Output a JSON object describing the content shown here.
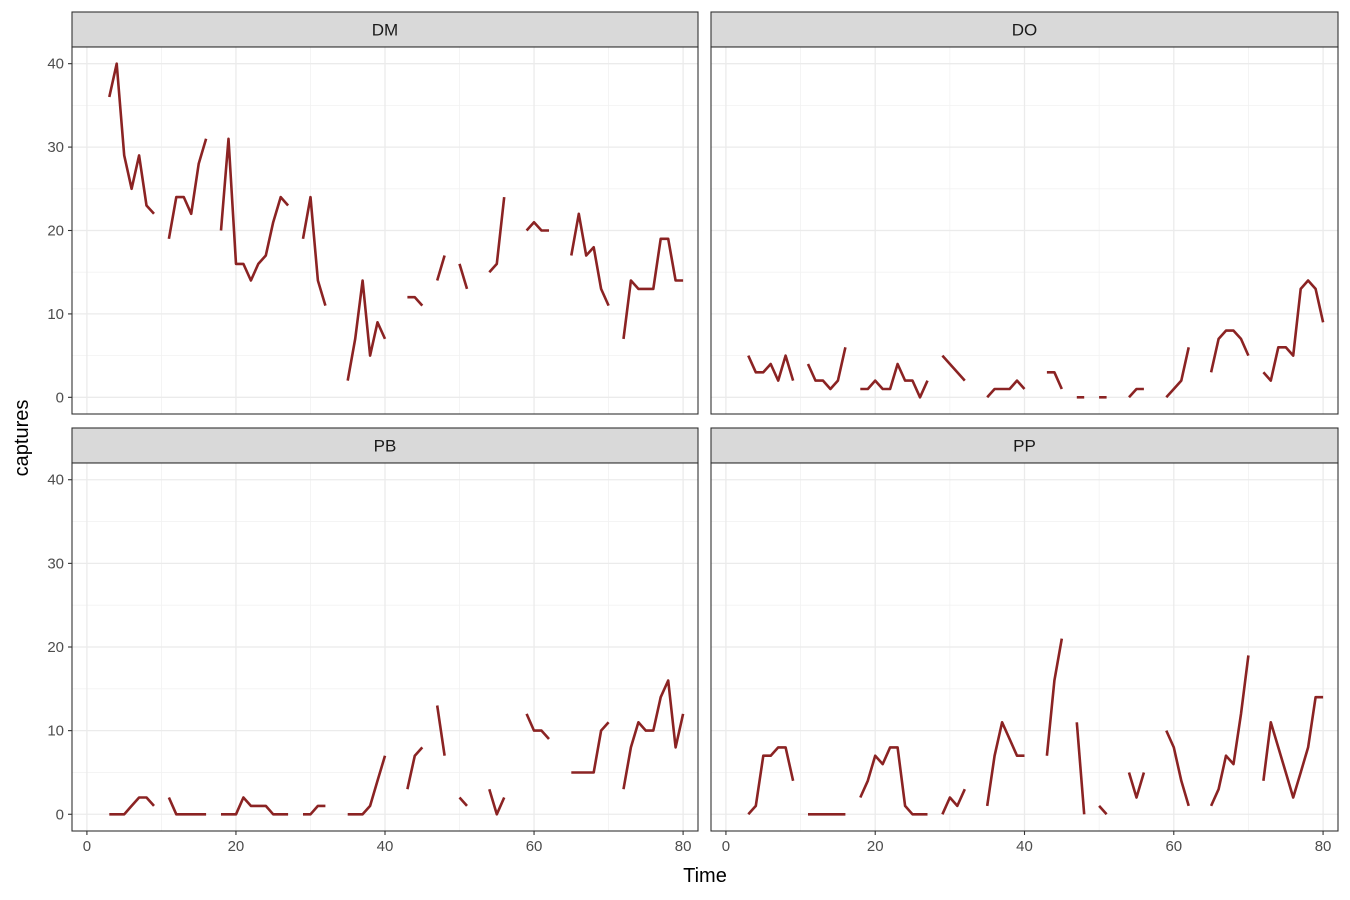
{
  "chart_data": {
    "type": "line",
    "xlabel": "Time",
    "ylabel": "captures",
    "xlim": [
      -2,
      82
    ],
    "ylim": [
      -2,
      42
    ],
    "x_ticks": [
      0,
      20,
      40,
      60,
      80
    ],
    "y_ticks": [
      0,
      10,
      20,
      30,
      40
    ],
    "x_minor": [
      10,
      30,
      50,
      70
    ],
    "y_minor": [
      5,
      15,
      25,
      35
    ],
    "grid": true,
    "line_color": "#8B2323",
    "facet_layout": "2x2",
    "panels": [
      {
        "name": "DM",
        "segments": [
          [
            [
              3,
              36
            ],
            [
              4,
              40
            ],
            [
              5,
              29
            ],
            [
              6,
              25
            ],
            [
              7,
              29
            ],
            [
              8,
              23
            ],
            [
              9,
              22
            ]
          ],
          [
            [
              11,
              19
            ],
            [
              12,
              24
            ],
            [
              13,
              24
            ],
            [
              14,
              22
            ],
            [
              15,
              28
            ],
            [
              16,
              31
            ]
          ],
          [
            [
              18,
              20
            ],
            [
              19,
              31
            ],
            [
              20,
              16
            ],
            [
              21,
              16
            ],
            [
              22,
              14
            ],
            [
              23,
              16
            ],
            [
              24,
              17
            ],
            [
              25,
              21
            ],
            [
              26,
              24
            ],
            [
              27,
              23
            ]
          ],
          [
            [
              29,
              19
            ],
            [
              30,
              24
            ],
            [
              31,
              14
            ],
            [
              32,
              11
            ]
          ],
          [
            [
              35,
              2
            ],
            [
              36,
              7
            ],
            [
              37,
              14
            ],
            [
              38,
              5
            ],
            [
              39,
              9
            ],
            [
              40,
              7
            ]
          ],
          [
            [
              43,
              12
            ],
            [
              44,
              12
            ],
            [
              45,
              11
            ]
          ],
          [
            [
              47,
              14
            ],
            [
              48,
              17
            ]
          ],
          [
            [
              50,
              16
            ],
            [
              51,
              13
            ]
          ],
          [
            [
              54,
              15
            ],
            [
              55,
              16
            ],
            [
              56,
              24
            ]
          ],
          [
            [
              59,
              20
            ],
            [
              60,
              21
            ],
            [
              61,
              20
            ],
            [
              62,
              20
            ]
          ],
          [
            [
              65,
              17
            ],
            [
              66,
              22
            ],
            [
              67,
              17
            ],
            [
              68,
              18
            ],
            [
              69,
              13
            ],
            [
              70,
              11
            ]
          ],
          [
            [
              72,
              7
            ],
            [
              73,
              14
            ],
            [
              74,
              13
            ],
            [
              75,
              13
            ],
            [
              76,
              13
            ],
            [
              77,
              19
            ],
            [
              78,
              19
            ],
            [
              79,
              14
            ],
            [
              80,
              14
            ]
          ]
        ]
      },
      {
        "name": "DO",
        "segments": [
          [
            [
              3,
              5
            ],
            [
              4,
              3
            ],
            [
              5,
              3
            ],
            [
              6,
              4
            ],
            [
              7,
              2
            ],
            [
              8,
              5
            ],
            [
              9,
              2
            ]
          ],
          [
            [
              11,
              4
            ],
            [
              12,
              2
            ],
            [
              13,
              2
            ],
            [
              14,
              1
            ],
            [
              15,
              2
            ],
            [
              16,
              6
            ]
          ],
          [
            [
              18,
              1
            ],
            [
              19,
              1
            ],
            [
              20,
              2
            ],
            [
              21,
              1
            ],
            [
              22,
              1
            ],
            [
              23,
              4
            ],
            [
              24,
              2
            ],
            [
              25,
              2
            ],
            [
              26,
              0
            ],
            [
              27,
              2
            ]
          ],
          [
            [
              29,
              5
            ],
            [
              30,
              4
            ],
            [
              31,
              3
            ],
            [
              32,
              2
            ]
          ],
          [
            [
              35,
              0
            ],
            [
              36,
              1
            ],
            [
              37,
              1
            ],
            [
              38,
              1
            ],
            [
              39,
              2
            ],
            [
              40,
              1
            ]
          ],
          [
            [
              43,
              3
            ],
            [
              44,
              3
            ],
            [
              45,
              1
            ]
          ],
          [
            [
              47,
              0
            ],
            [
              48,
              0
            ]
          ],
          [
            [
              50,
              0
            ],
            [
              51,
              0
            ]
          ],
          [
            [
              54,
              0
            ],
            [
              55,
              1
            ],
            [
              56,
              1
            ]
          ],
          [
            [
              59,
              0
            ],
            [
              60,
              1
            ],
            [
              61,
              2
            ],
            [
              62,
              6
            ]
          ],
          [
            [
              65,
              3
            ],
            [
              66,
              7
            ],
            [
              67,
              8
            ],
            [
              68,
              8
            ],
            [
              69,
              7
            ],
            [
              70,
              5
            ]
          ],
          [
            [
              72,
              3
            ],
            [
              73,
              2
            ],
            [
              74,
              6
            ],
            [
              75,
              6
            ],
            [
              76,
              5
            ],
            [
              77,
              13
            ],
            [
              78,
              14
            ],
            [
              79,
              13
            ],
            [
              80,
              9
            ]
          ]
        ]
      },
      {
        "name": "PB",
        "segments": [
          [
            [
              3,
              0
            ],
            [
              4,
              0
            ],
            [
              5,
              0
            ],
            [
              6,
              1
            ],
            [
              7,
              2
            ],
            [
              8,
              2
            ],
            [
              9,
              1
            ]
          ],
          [
            [
              11,
              2
            ],
            [
              12,
              0
            ],
            [
              13,
              0
            ],
            [
              14,
              0
            ],
            [
              15,
              0
            ],
            [
              16,
              0
            ]
          ],
          [
            [
              18,
              0
            ],
            [
              19,
              0
            ],
            [
              20,
              0
            ],
            [
              21,
              2
            ],
            [
              22,
              1
            ],
            [
              23,
              1
            ],
            [
              24,
              1
            ],
            [
              25,
              0
            ],
            [
              26,
              0
            ],
            [
              27,
              0
            ]
          ],
          [
            [
              29,
              0
            ],
            [
              30,
              0
            ],
            [
              31,
              1
            ],
            [
              32,
              1
            ]
          ],
          [
            [
              35,
              0
            ],
            [
              36,
              0
            ],
            [
              37,
              0
            ],
            [
              38,
              1
            ],
            [
              39,
              4
            ],
            [
              40,
              7
            ]
          ],
          [
            [
              43,
              3
            ],
            [
              44,
              7
            ],
            [
              45,
              8
            ]
          ],
          [
            [
              47,
              13
            ],
            [
              48,
              7
            ]
          ],
          [
            [
              50,
              2
            ],
            [
              51,
              1
            ]
          ],
          [
            [
              54,
              3
            ],
            [
              55,
              0
            ],
            [
              56,
              2
            ]
          ],
          [
            [
              59,
              12
            ],
            [
              60,
              10
            ],
            [
              61,
              10
            ],
            [
              62,
              9
            ]
          ],
          [
            [
              65,
              5
            ],
            [
              66,
              5
            ],
            [
              67,
              5
            ],
            [
              68,
              5
            ],
            [
              69,
              10
            ],
            [
              70,
              11
            ]
          ],
          [
            [
              72,
              3
            ],
            [
              73,
              8
            ],
            [
              74,
              11
            ],
            [
              75,
              10
            ],
            [
              76,
              10
            ],
            [
              77,
              14
            ],
            [
              78,
              16
            ],
            [
              79,
              8
            ],
            [
              80,
              12
            ]
          ]
        ]
      },
      {
        "name": "PP",
        "segments": [
          [
            [
              3,
              0
            ],
            [
              4,
              1
            ],
            [
              5,
              7
            ],
            [
              6,
              7
            ],
            [
              7,
              8
            ],
            [
              8,
              8
            ],
            [
              9,
              4
            ]
          ],
          [
            [
              11,
              0
            ],
            [
              12,
              0
            ],
            [
              13,
              0
            ],
            [
              14,
              0
            ],
            [
              15,
              0
            ],
            [
              16,
              0
            ]
          ],
          [
            [
              18,
              2
            ],
            [
              19,
              4
            ],
            [
              20,
              7
            ],
            [
              21,
              6
            ],
            [
              22,
              8
            ],
            [
              23,
              8
            ],
            [
              24,
              1
            ],
            [
              25,
              0
            ],
            [
              26,
              0
            ],
            [
              27,
              0
            ]
          ],
          [
            [
              29,
              0
            ],
            [
              30,
              2
            ],
            [
              31,
              1
            ],
            [
              32,
              3
            ]
          ],
          [
            [
              35,
              1
            ],
            [
              36,
              7
            ],
            [
              37,
              11
            ],
            [
              38,
              9
            ],
            [
              39,
              7
            ],
            [
              40,
              7
            ]
          ],
          [
            [
              43,
              7
            ],
            [
              44,
              16
            ],
            [
              45,
              21
            ]
          ],
          [
            [
              47,
              11
            ],
            [
              48,
              0
            ]
          ],
          [
            [
              50,
              1
            ],
            [
              51,
              0
            ]
          ],
          [
            [
              54,
              5
            ],
            [
              55,
              2
            ],
            [
              56,
              5
            ]
          ],
          [
            [
              59,
              10
            ],
            [
              60,
              8
            ],
            [
              61,
              4
            ],
            [
              62,
              1
            ]
          ],
          [
            [
              65,
              1
            ],
            [
              66,
              3
            ],
            [
              67,
              7
            ],
            [
              68,
              6
            ],
            [
              69,
              12
            ],
            [
              70,
              19
            ]
          ],
          [
            [
              72,
              4
            ],
            [
              73,
              11
            ],
            [
              74,
              8
            ],
            [
              75,
              5
            ],
            [
              76,
              2
            ],
            [
              77,
              5
            ],
            [
              78,
              8
            ],
            [
              79,
              14
            ],
            [
              80,
              14
            ]
          ]
        ]
      }
    ]
  }
}
